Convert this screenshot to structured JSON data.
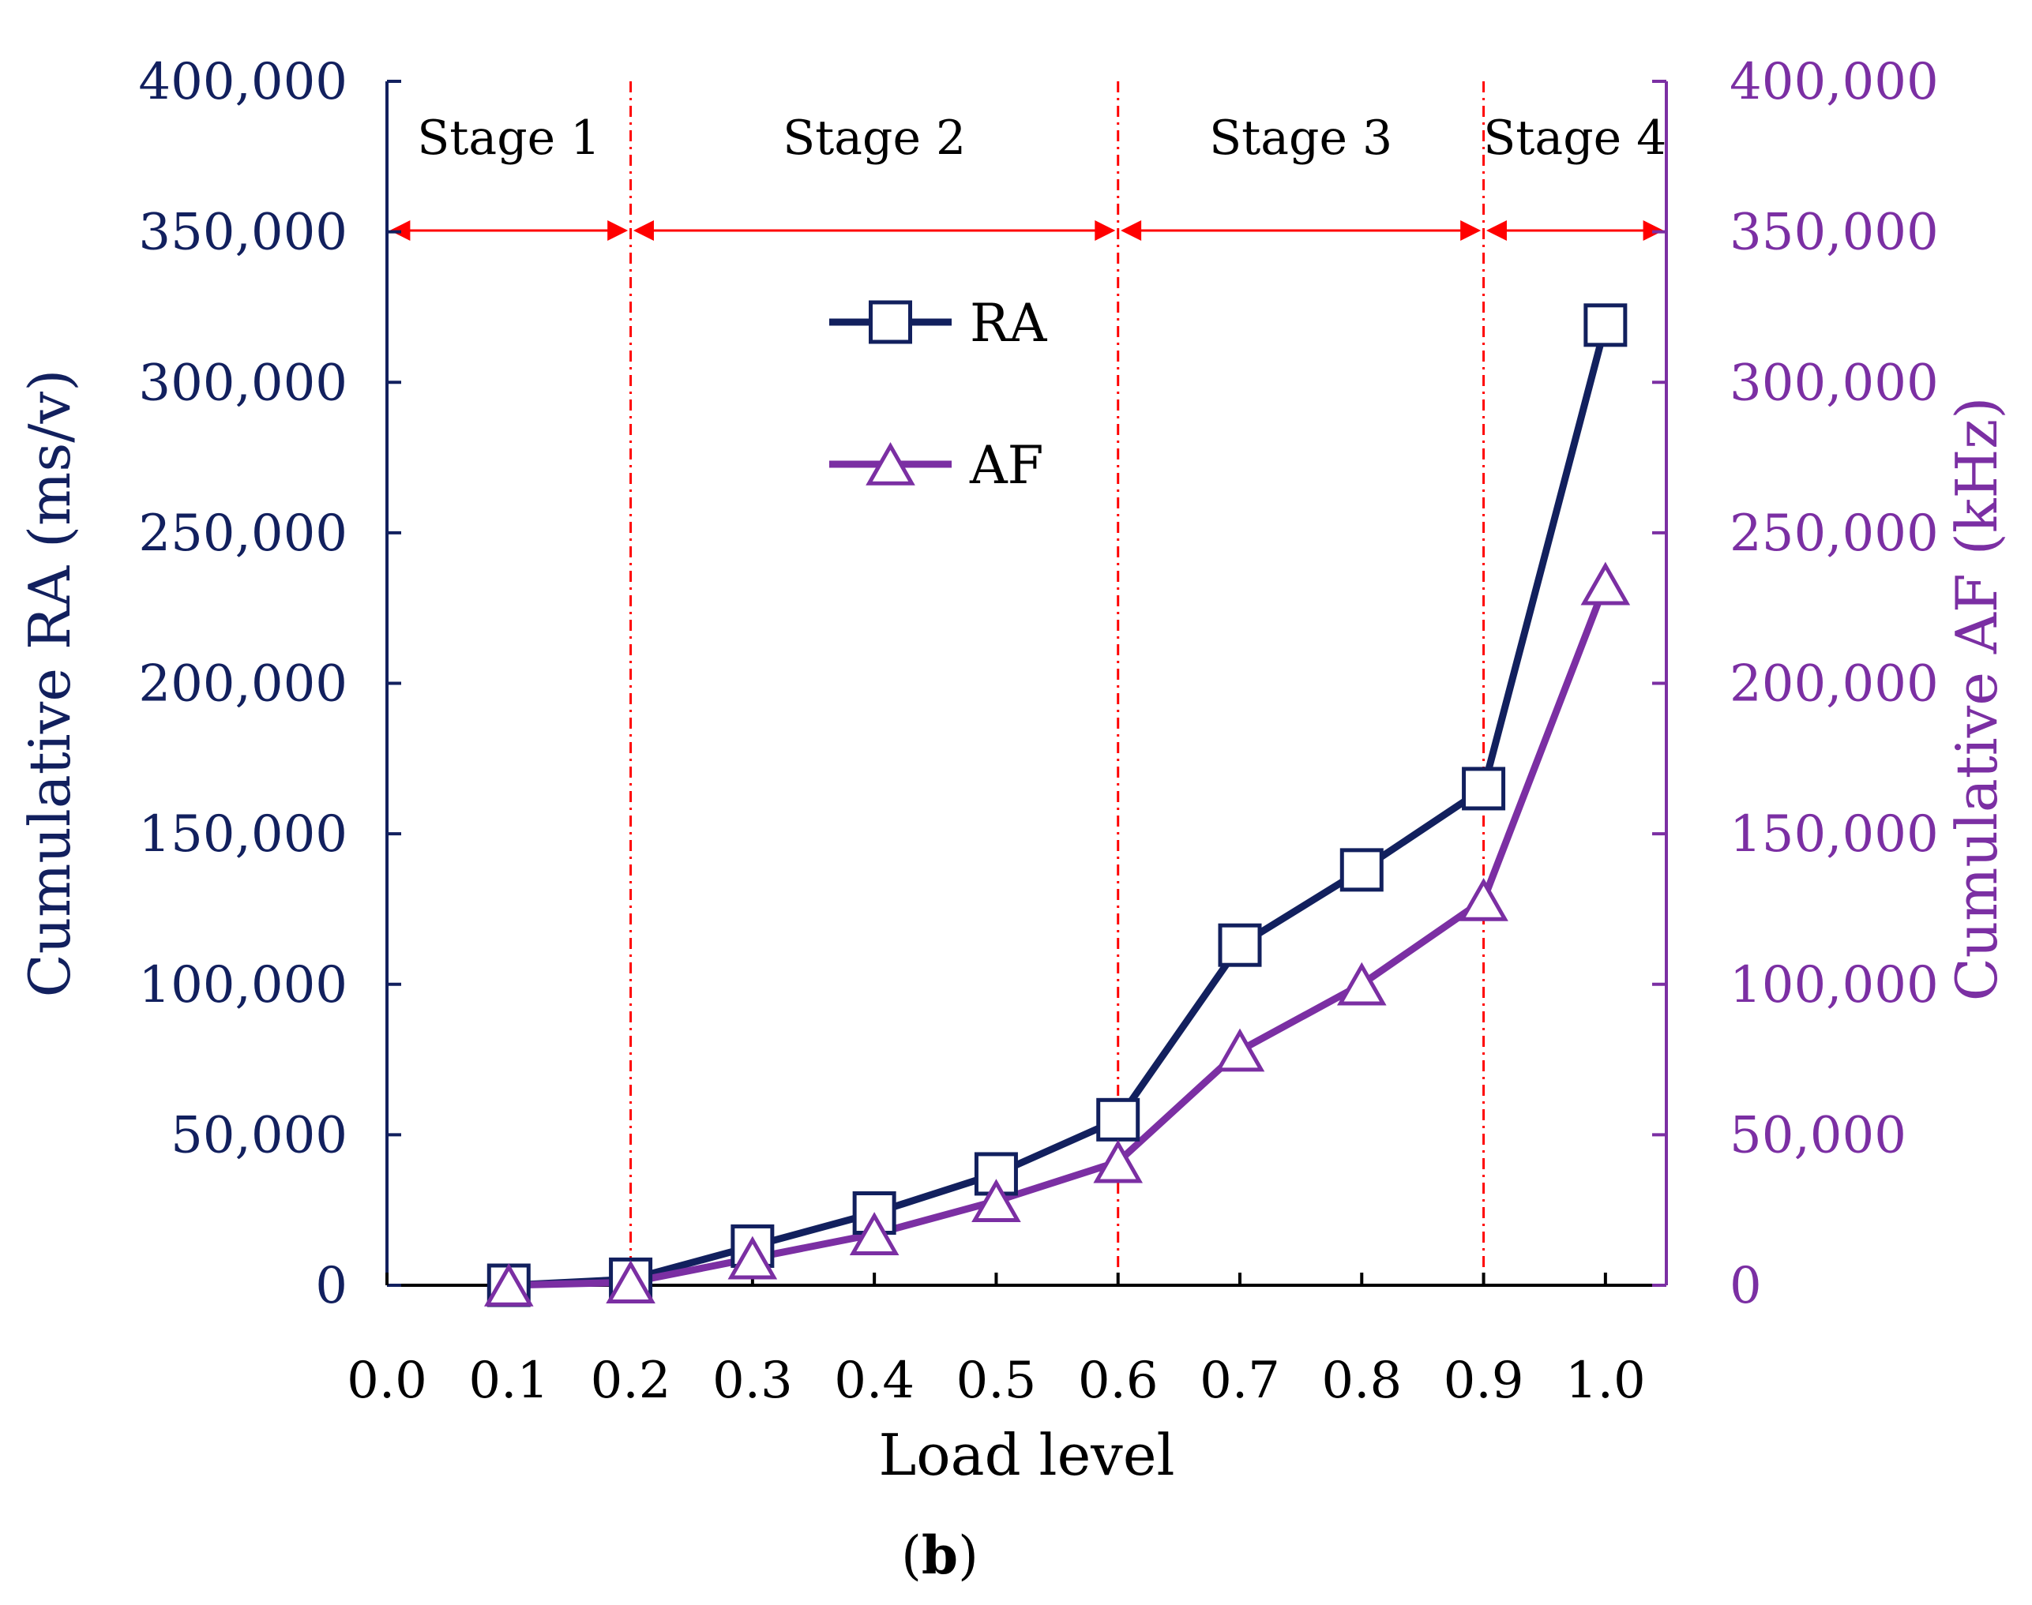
{
  "chart_data": {
    "type": "line",
    "xlabel": "Load level",
    "ylabel_left": "Cumulative RA (ms/v)",
    "ylabel_right": "Cumulative AF (kHz)",
    "xlim": [
      0.0,
      1.05
    ],
    "ylim": [
      0,
      400000
    ],
    "x_ticks": [
      "0.0",
      "0.1",
      "0.2",
      "0.3",
      "0.4",
      "0.5",
      "0.6",
      "0.7",
      "0.8",
      "0.9",
      "1.0"
    ],
    "y_ticks_left": [
      "0",
      "50,000",
      "100,000",
      "150,000",
      "200,000",
      "250,000",
      "300,000",
      "350,000",
      "400,000"
    ],
    "y_ticks_right": [
      "0",
      "50,000",
      "100,000",
      "150,000",
      "200,000",
      "250,000",
      "300,000",
      "350,000",
      "400,000"
    ],
    "x": [
      0.1,
      0.2,
      0.3,
      0.4,
      0.5,
      0.6,
      0.7,
      0.8,
      0.9,
      1.0
    ],
    "series": [
      {
        "name": "RA",
        "axis": "left",
        "color": "#12205e",
        "marker": "square",
        "values": [
          0,
          2000,
          13000,
          24000,
          37000,
          55000,
          113000,
          138000,
          165000,
          319000
        ]
      },
      {
        "name": "AF",
        "axis": "right",
        "color": "#7b2fa3",
        "marker": "triangle",
        "values": [
          0,
          1000,
          9000,
          17000,
          28000,
          41000,
          78000,
          100000,
          128000,
          233000
        ]
      }
    ],
    "stage_boundaries": [
      0.2,
      0.6,
      0.9
    ],
    "stages": [
      {
        "label": "Stage 1",
        "from": 0.0,
        "to": 0.2
      },
      {
        "label": "Stage 2",
        "from": 0.2,
        "to": 0.6
      },
      {
        "label": "Stage 3",
        "from": 0.6,
        "to": 0.9
      },
      {
        "label": "Stage 4",
        "from": 0.9,
        "to": 1.05
      }
    ],
    "legend_position": "upper-center",
    "caption": {
      "open": "(",
      "bold": "b",
      "close": ")"
    },
    "colors": {
      "left_axis": "#12205e",
      "right_axis": "#7b2fa3",
      "stage_lines": "#ff0000"
    }
  }
}
